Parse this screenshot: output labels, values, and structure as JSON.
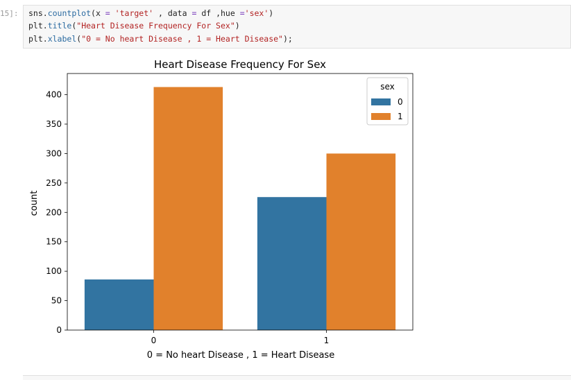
{
  "cell": {
    "prompt": "15]:",
    "code": {
      "line1": {
        "a": "sns.",
        "fn": "countplot",
        "b": "(x ",
        "eq1": "=",
        "c": " ",
        "s1": "'target'",
        "d": " , data ",
        "eq2": "=",
        "e": " df ,hue ",
        "eq3": "=",
        "s2": "'sex'",
        "f": ")"
      },
      "line2": {
        "a": "plt.",
        "fn": "title",
        "b": "(",
        "s1": "\"Heart Disease Frequency For Sex\"",
        "c": ")"
      },
      "line3": {
        "a": "plt.",
        "fn": "xlabel",
        "b": "(",
        "s1": "\"0 = No heart Disease , 1 = Heart Disease\"",
        "c": ");"
      }
    }
  },
  "chart_data": {
    "type": "bar",
    "title": "Heart Disease Frequency For Sex",
    "xlabel": "0 = No heart Disease , 1 = Heart Disease",
    "ylabel": "count",
    "categories": [
      "0",
      "1"
    ],
    "series": [
      {
        "name": "0",
        "values": [
          86,
          226
        ],
        "color": "#3274a1"
      },
      {
        "name": "1",
        "values": [
          413,
          300
        ],
        "color": "#e1812c"
      }
    ],
    "ylim": [
      0,
      436
    ],
    "yticks": [
      0,
      50,
      100,
      150,
      200,
      250,
      300,
      350,
      400
    ],
    "legend": {
      "title": "sex",
      "placement": "top-right"
    },
    "grid": false
  }
}
